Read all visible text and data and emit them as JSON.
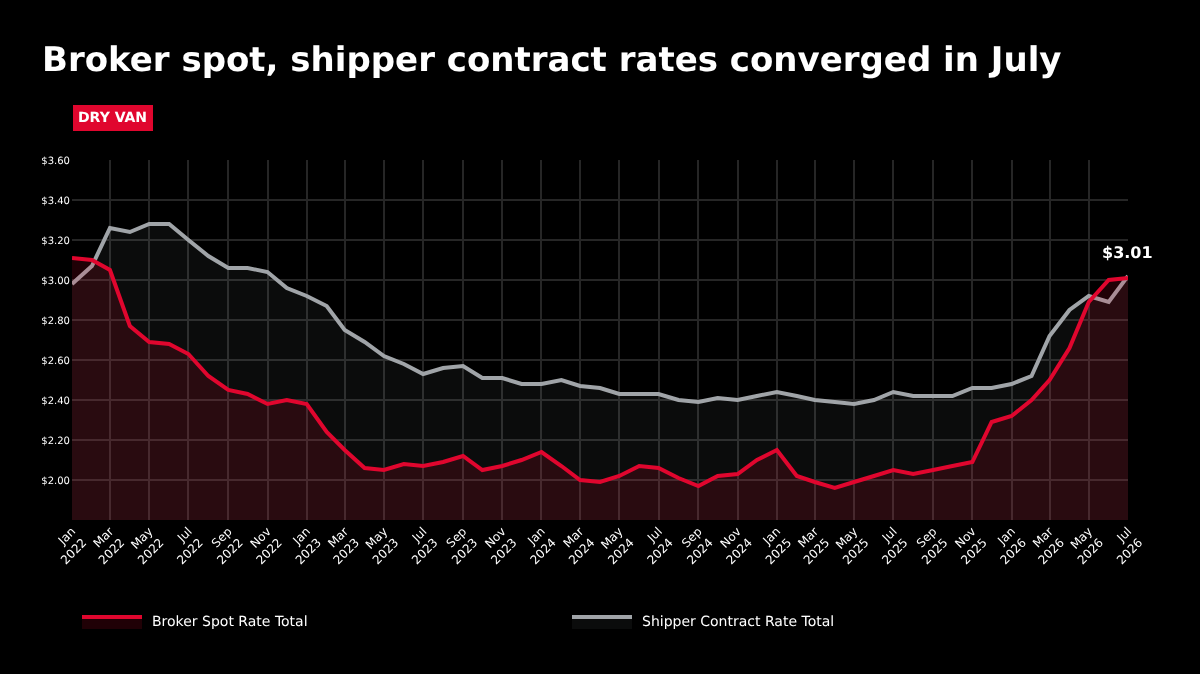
{
  "chart_data": {
    "type": "area",
    "title": "Broker spot, shipper contract rates converged in July",
    "annotations": [
      "DRY VAN",
      {
        "text": "$3.01",
        "x": "2026-07",
        "y": 3.01
      }
    ],
    "x": [
      "2022-01",
      "2022-02",
      "2022-03",
      "2022-04",
      "2022-05",
      "2022-06",
      "2022-07",
      "2022-08",
      "2022-09",
      "2022-10",
      "2022-11",
      "2022-12",
      "2023-01",
      "2023-02",
      "2023-03",
      "2023-04",
      "2023-05",
      "2023-06",
      "2023-07",
      "2023-08",
      "2023-09",
      "2023-10",
      "2023-11",
      "2023-12",
      "2024-01",
      "2024-02",
      "2024-03",
      "2024-04",
      "2024-05",
      "2024-06",
      "2024-07",
      "2024-08",
      "2024-09",
      "2024-10",
      "2024-11",
      "2024-12",
      "2025-01",
      "2025-02",
      "2025-03",
      "2025-04",
      "2025-05",
      "2025-06",
      "2025-07",
      "2025-08",
      "2025-09",
      "2025-10",
      "2025-11",
      "2025-12",
      "2026-01",
      "2026-02",
      "2026-03",
      "2026-04",
      "2026-05",
      "2026-06",
      "2026-07"
    ],
    "series": [
      {
        "name": "Broker Spot Rate Total",
        "color": "#e0062e",
        "values": [
          3.11,
          3.1,
          3.05,
          2.77,
          2.69,
          2.68,
          2.63,
          2.52,
          2.45,
          2.43,
          2.38,
          2.4,
          2.38,
          2.24,
          2.15,
          2.06,
          2.05,
          2.08,
          2.07,
          2.09,
          2.12,
          2.05,
          2.07,
          2.1,
          2.14,
          2.07,
          2.0,
          1.99,
          2.02,
          2.07,
          2.06,
          2.01,
          1.97,
          2.02,
          2.03,
          2.1,
          2.15,
          2.02,
          1.99,
          1.96,
          1.99,
          2.02,
          2.05,
          2.03,
          2.05,
          2.07,
          2.09,
          2.29,
          2.32,
          2.4,
          2.5,
          2.66,
          2.89,
          3.0,
          3.01
        ]
      },
      {
        "name": "Shipper Contract Rate Total",
        "color": "#a0a4a8",
        "values": [
          2.98,
          3.07,
          3.26,
          3.24,
          3.28,
          3.28,
          3.2,
          3.12,
          3.06,
          3.06,
          3.04,
          2.96,
          2.92,
          2.87,
          2.75,
          2.69,
          2.62,
          2.58,
          2.53,
          2.56,
          2.57,
          2.51,
          2.51,
          2.48,
          2.48,
          2.5,
          2.47,
          2.46,
          2.43,
          2.43,
          2.43,
          2.4,
          2.39,
          2.41,
          2.4,
          2.42,
          2.44,
          2.42,
          2.4,
          2.39,
          2.38,
          2.4,
          2.44,
          2.42,
          2.42,
          2.42,
          2.46,
          2.46,
          2.48,
          2.52,
          2.72,
          2.85,
          2.92,
          2.89,
          3.02
        ]
      }
    ],
    "xlim": [
      "2022-01",
      "2026-07"
    ],
    "xticks": [
      {
        "value": "2022-01",
        "label": "Jan\n2022"
      },
      {
        "value": "2022-03",
        "label": "Mar\n2022"
      },
      {
        "value": "2022-05",
        "label": "May\n2022"
      },
      {
        "value": "2022-07",
        "label": "Jul\n2022"
      },
      {
        "value": "2022-09",
        "label": "Sep\n2022"
      },
      {
        "value": "2022-11",
        "label": "Nov\n2022"
      },
      {
        "value": "2023-01",
        "label": "Jan\n2023"
      },
      {
        "value": "2023-03",
        "label": "Mar\n2023"
      },
      {
        "value": "2023-05",
        "label": "May\n2023"
      },
      {
        "value": "2023-07",
        "label": "Jul\n2023"
      },
      {
        "value": "2023-09",
        "label": "Sep\n2023"
      },
      {
        "value": "2023-11",
        "label": "Nov\n2023"
      },
      {
        "value": "2024-01",
        "label": "Jan\n2024"
      },
      {
        "value": "2024-03",
        "label": "Mar\n2024"
      },
      {
        "value": "2024-05",
        "label": "May\n2024"
      },
      {
        "value": "2024-07",
        "label": "Jul\n2024"
      },
      {
        "value": "2024-09",
        "label": "Sep\n2024"
      },
      {
        "value": "2024-11",
        "label": "Nov\n2024"
      },
      {
        "value": "2025-01",
        "label": "Jan\n2025"
      },
      {
        "value": "2025-03",
        "label": "Mar\n2025"
      },
      {
        "value": "2025-05",
        "label": "May\n2025"
      },
      {
        "value": "2025-07",
        "label": "Jul\n2025"
      },
      {
        "value": "2025-09",
        "label": "Sep\n2025"
      },
      {
        "value": "2025-11",
        "label": "Nov\n2025"
      },
      {
        "value": "2026-01",
        "label": "Jan\n2026"
      },
      {
        "value": "2026-03",
        "label": "Mar\n2026"
      },
      {
        "value": "2026-05",
        "label": "May\n2026"
      },
      {
        "value": "2026-07",
        "label": "Jul\n2026"
      }
    ],
    "ylim": [
      1.8,
      3.6
    ],
    "yticks": [
      {
        "value": 2.0,
        "label": "$2.00"
      },
      {
        "value": 2.2,
        "label": "$2.20"
      },
      {
        "value": 2.4,
        "label": "$2.40"
      },
      {
        "value": 2.6,
        "label": "$2.60"
      },
      {
        "value": 2.8,
        "label": "$2.80"
      },
      {
        "value": 3.0,
        "label": "$3.00"
      },
      {
        "value": 3.2,
        "label": "$3.20"
      },
      {
        "value": 3.4,
        "label": "$3.40"
      },
      {
        "value": 3.6,
        "label": "$3.60"
      }
    ],
    "grid": true,
    "legend": "bottom"
  }
}
